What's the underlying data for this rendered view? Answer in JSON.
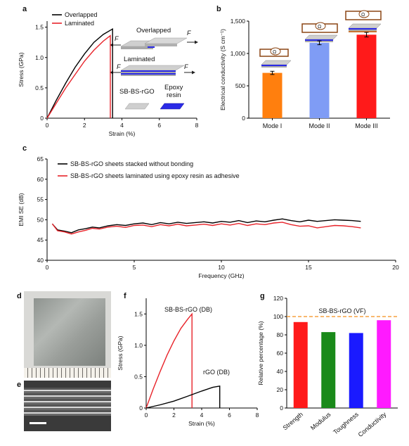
{
  "panel_labels": [
    "a",
    "b",
    "c",
    "d",
    "e",
    "f",
    "g"
  ],
  "inset_a": {
    "overlapped": "Overlapped",
    "laminated": "Laminated",
    "force_label": "F",
    "material_1": "SB-BS-rGO",
    "material_2_line1": "Epoxy",
    "material_2_line2": "resin"
  },
  "omega_symbol": "Ω",
  "chart_data": [
    {
      "panel": "a",
      "type": "line",
      "xlabel": "Strain (%)",
      "ylabel": "Stress (GPa)",
      "xlim": [
        0,
        8
      ],
      "ylim": [
        0,
        1.6
      ],
      "xticks": [
        0,
        2,
        4,
        6,
        8
      ],
      "yticks": [
        0,
        0.5,
        1.0,
        1.5
      ],
      "xtick_labels": [
        "0",
        "2",
        "4",
        "6",
        "8"
      ],
      "ytick_labels": [
        "0",
        "0.5",
        "1.0",
        "1.5"
      ],
      "legend_position": "top-left",
      "series": [
        {
          "name": "Overlapped",
          "color": "#000000",
          "points": [
            [
              0,
              0
            ],
            [
              0.5,
              0.3
            ],
            [
              1.0,
              0.58
            ],
            [
              1.5,
              0.84
            ],
            [
              2.0,
              1.06
            ],
            [
              2.5,
              1.25
            ],
            [
              3.0,
              1.38
            ],
            [
              3.5,
              1.47
            ],
            [
              3.5,
              0
            ]
          ]
        },
        {
          "name": "Laminated",
          "color": "#e8232a",
          "points": [
            [
              0,
              0
            ],
            [
              0.5,
              0.25
            ],
            [
              1.0,
              0.5
            ],
            [
              1.5,
              0.72
            ],
            [
              2.0,
              0.94
            ],
            [
              2.5,
              1.12
            ],
            [
              3.0,
              1.27
            ],
            [
              3.38,
              1.36
            ],
            [
              3.38,
              0
            ]
          ]
        }
      ]
    },
    {
      "panel": "b",
      "type": "bar",
      "ylabel": "Electrical conductivity (S cm⁻¹)",
      "ylim": [
        0,
        1500
      ],
      "yticks": [
        0,
        500,
        1000,
        1500
      ],
      "ytick_labels": [
        "0",
        "500",
        "1,000",
        "1,500"
      ],
      "categories": [
        "Mode I",
        "Mode II",
        "Mode III"
      ],
      "values": [
        700,
        1165,
        1290
      ],
      "errors": [
        25,
        30,
        35
      ],
      "colors": [
        "#ff7f0e",
        "#7f9cf5",
        "#ff1a1a"
      ]
    },
    {
      "panel": "c",
      "type": "line",
      "xlabel": "Frequency (GHz)",
      "ylabel": "EMI SE (dB)",
      "xlim": [
        0,
        20
      ],
      "ylim": [
        40,
        65
      ],
      "xticks": [
        0,
        5,
        10,
        15,
        20
      ],
      "yticks": [
        40,
        45,
        50,
        55,
        60,
        65
      ],
      "xtick_labels": [
        "0",
        "5",
        "10",
        "15",
        "20"
      ],
      "ytick_labels": [
        "40",
        "45",
        "50",
        "55",
        "60",
        "65"
      ],
      "legend_position": "top-left",
      "series": [
        {
          "name": "SB-BS-rGO sheets stacked without bonding",
          "color": "#000000",
          "points": [
            [
              0.3,
              49
            ],
            [
              0.6,
              47.5
            ],
            [
              1.0,
              47.2
            ],
            [
              1.4,
              46.8
            ],
            [
              1.8,
              47.5
            ],
            [
              2.2,
              47.8
            ],
            [
              2.6,
              48.2
            ],
            [
              3.0,
              48.0
            ],
            [
              3.5,
              48.5
            ],
            [
              4.0,
              48.8
            ],
            [
              4.5,
              48.6
            ],
            [
              5.0,
              49.0
            ],
            [
              5.5,
              49.2
            ],
            [
              6.0,
              48.8
            ],
            [
              6.5,
              49.3
            ],
            [
              7.0,
              49.0
            ],
            [
              7.5,
              49.4
            ],
            [
              8.0,
              49.1
            ],
            [
              8.5,
              49.3
            ],
            [
              9.0,
              49.5
            ],
            [
              9.5,
              49.2
            ],
            [
              10.0,
              49.6
            ],
            [
              10.5,
              49.4
            ],
            [
              11.0,
              49.8
            ],
            [
              11.5,
              49.3
            ],
            [
              12.0,
              49.7
            ],
            [
              12.5,
              49.5
            ],
            [
              13.0,
              49.9
            ],
            [
              13.5,
              50.2
            ],
            [
              14.0,
              49.8
            ],
            [
              14.5,
              49.5
            ],
            [
              15.0,
              49.9
            ],
            [
              15.5,
              49.6
            ],
            [
              16.0,
              49.8
            ],
            [
              16.5,
              50.0
            ],
            [
              17.0,
              49.9
            ],
            [
              17.5,
              49.8
            ],
            [
              18.0,
              49.6
            ]
          ]
        },
        {
          "name": "SB-BS-rGO sheets laminated using epoxy resin as adhesive",
          "color": "#e8232a",
          "points": [
            [
              0.3,
              49
            ],
            [
              0.6,
              47.3
            ],
            [
              1.0,
              47.0
            ],
            [
              1.4,
              46.5
            ],
            [
              1.8,
              47.0
            ],
            [
              2.2,
              47.4
            ],
            [
              2.6,
              47.9
            ],
            [
              3.0,
              47.7
            ],
            [
              3.5,
              48.2
            ],
            [
              4.0,
              48.4
            ],
            [
              4.5,
              48.1
            ],
            [
              5.0,
              48.6
            ],
            [
              5.5,
              48.7
            ],
            [
              6.0,
              48.3
            ],
            [
              6.5,
              48.8
            ],
            [
              7.0,
              48.5
            ],
            [
              7.5,
              48.9
            ],
            [
              8.0,
              48.5
            ],
            [
              8.5,
              48.7
            ],
            [
              9.0,
              48.9
            ],
            [
              9.5,
              48.6
            ],
            [
              10.0,
              49.0
            ],
            [
              10.5,
              48.7
            ],
            [
              11.0,
              49.1
            ],
            [
              11.5,
              48.6
            ],
            [
              12.0,
              49.0
            ],
            [
              12.5,
              48.8
            ],
            [
              13.0,
              49.2
            ],
            [
              13.5,
              49.4
            ],
            [
              14.0,
              48.8
            ],
            [
              14.5,
              48.4
            ],
            [
              15.0,
              48.5
            ],
            [
              15.5,
              48.0
            ],
            [
              16.0,
              48.3
            ],
            [
              16.5,
              48.6
            ],
            [
              17.0,
              48.5
            ],
            [
              17.5,
              48.3
            ],
            [
              18.0,
              48.0
            ]
          ]
        }
      ]
    },
    {
      "panel": "f",
      "type": "line",
      "xlabel": "Strain (%)",
      "ylabel": "Stress (GPa)",
      "xlim": [
        0,
        8
      ],
      "ylim": [
        0,
        1.75
      ],
      "xticks": [
        0,
        2,
        4,
        6,
        8
      ],
      "yticks": [
        0,
        0.5,
        1.0,
        1.5
      ],
      "xtick_labels": [
        "0",
        "2",
        "4",
        "6",
        "8"
      ],
      "ytick_labels": [
        "0",
        "0.5",
        "1.0",
        "1.5"
      ],
      "series": [
        {
          "name": "SB-BS-rGO (DB)",
          "color": "#e8232a",
          "points": [
            [
              0,
              0
            ],
            [
              0.5,
              0.3
            ],
            [
              1.0,
              0.58
            ],
            [
              1.5,
              0.84
            ],
            [
              2.0,
              1.07
            ],
            [
              2.5,
              1.27
            ],
            [
              3.0,
              1.42
            ],
            [
              3.3,
              1.5
            ],
            [
              3.3,
              0
            ]
          ]
        },
        {
          "name": "rGO (DB)",
          "color": "#000000",
          "points": [
            [
              0,
              0
            ],
            [
              1.0,
              0.05
            ],
            [
              2.0,
              0.11
            ],
            [
              3.0,
              0.19
            ],
            [
              4.0,
              0.27
            ],
            [
              4.8,
              0.33
            ],
            [
              5.3,
              0.35
            ],
            [
              5.3,
              0
            ]
          ]
        }
      ]
    },
    {
      "panel": "g",
      "type": "bar",
      "ylabel": "Relative percentage (%)",
      "ylim": [
        0,
        120
      ],
      "yticks": [
        0,
        20,
        40,
        60,
        80,
        100,
        120
      ],
      "ytick_labels": [
        "0",
        "20",
        "40",
        "60",
        "80",
        "100",
        "120"
      ],
      "categories": [
        "Strength",
        "Modulus",
        "Toughness",
        "Conductivity"
      ],
      "values": [
        94,
        83,
        82,
        96
      ],
      "colors": [
        "#ff1a1a",
        "#1a8a1a",
        "#1a1aff",
        "#ff1aff"
      ],
      "reference_line": {
        "value": 100,
        "label": "SB-BS-rGO (VF)",
        "color": "#f5a040"
      }
    }
  ]
}
